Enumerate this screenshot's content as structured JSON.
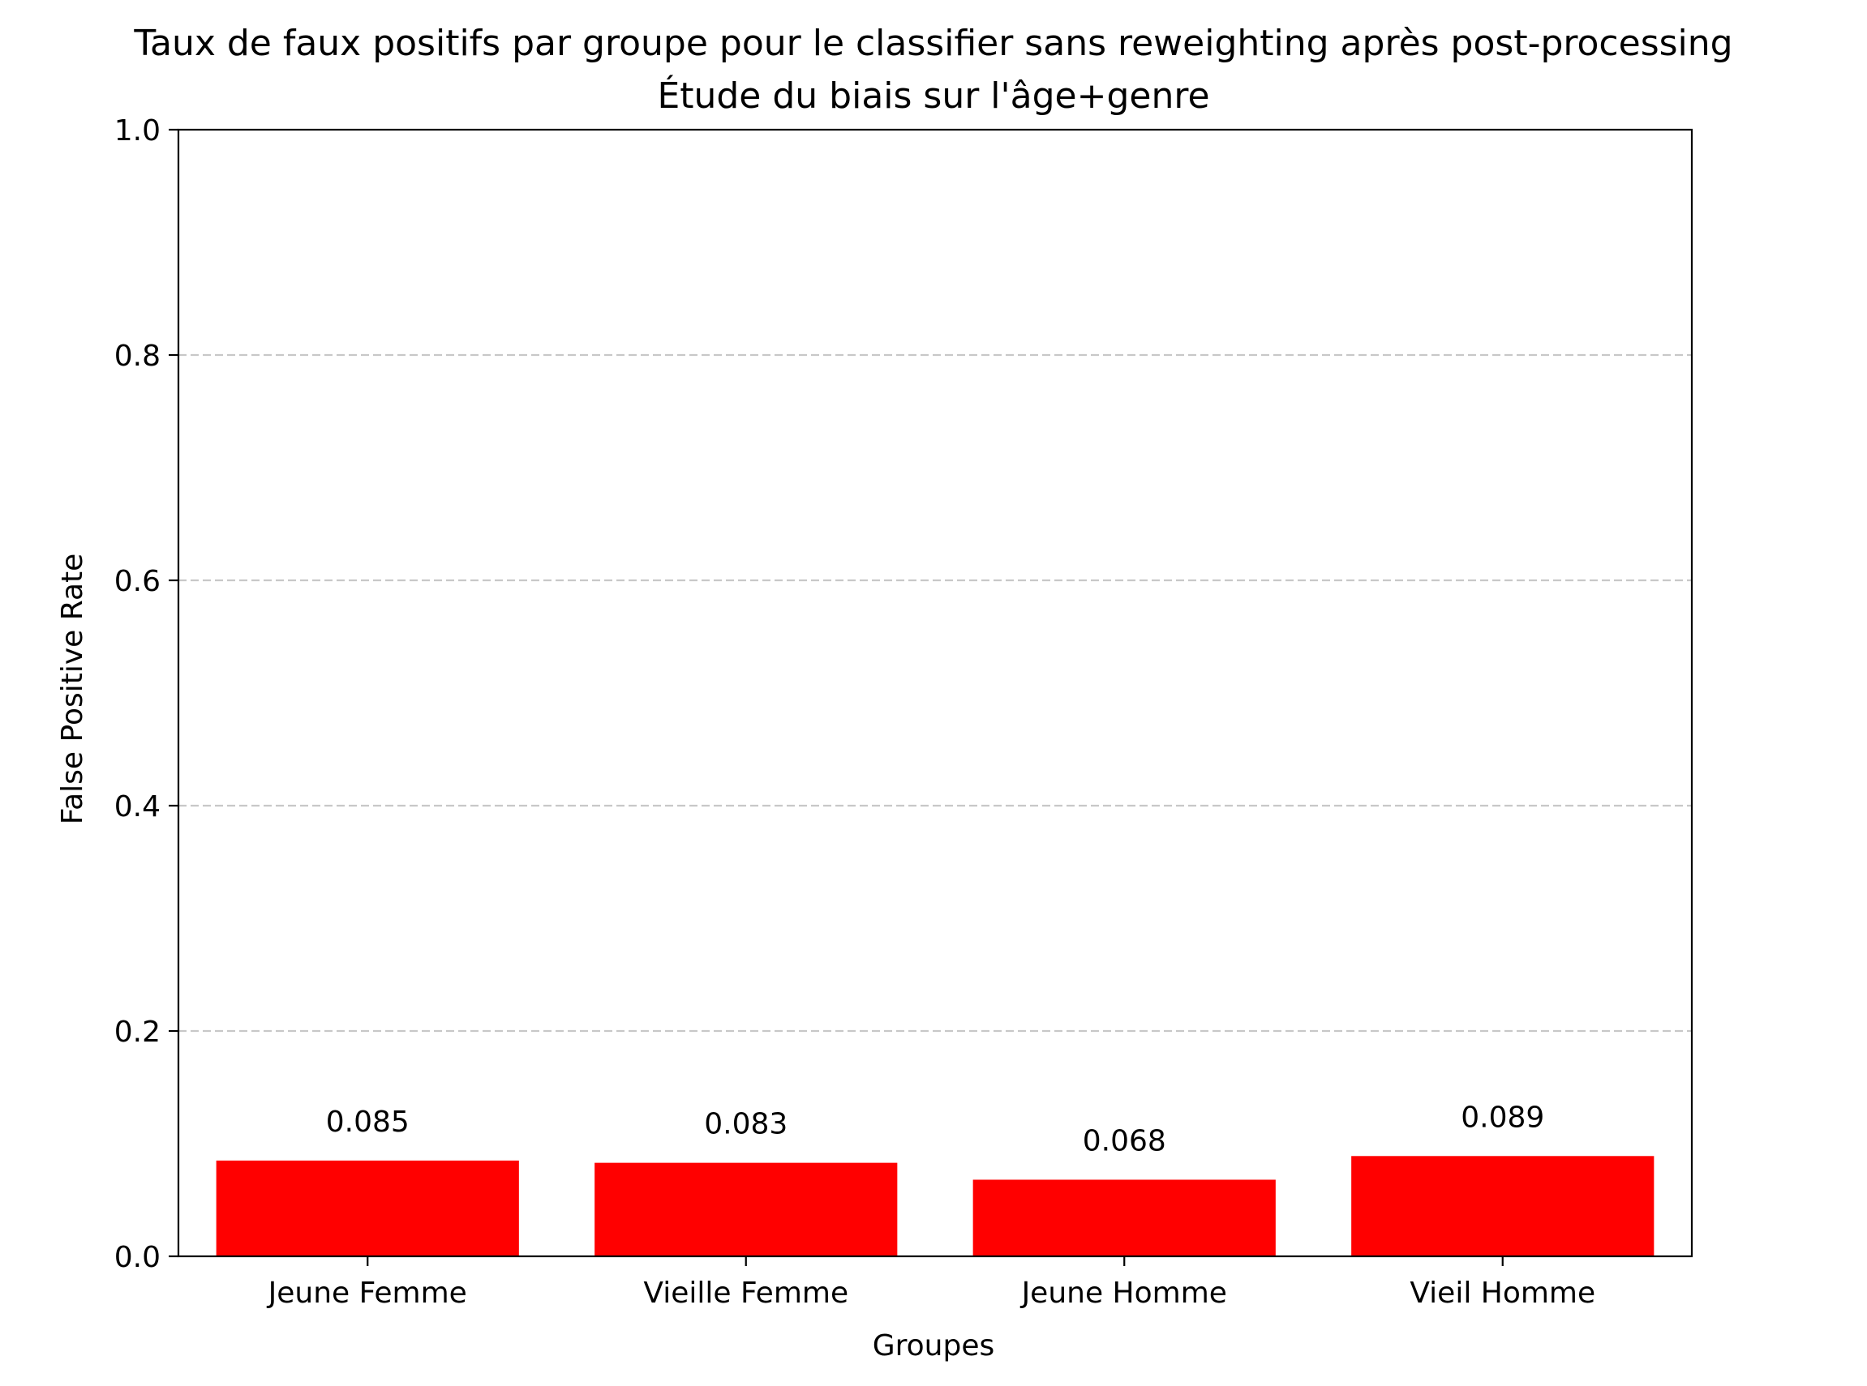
{
  "chart_data": {
    "type": "bar",
    "title": "Taux de faux positifs par groupe pour le classifier sans reweighting après post-processing",
    "subtitle": "Étude du biais sur l'âge+genre",
    "xlabel": "Groupes",
    "ylabel": "False Positive Rate",
    "categories": [
      "Jeune Femme",
      "Vieille Femme",
      "Jeune Homme",
      "Vieil Homme"
    ],
    "values": [
      0.085,
      0.083,
      0.068,
      0.089
    ],
    "data_labels": [
      "0.085",
      "0.083",
      "0.068",
      "0.089"
    ],
    "ylim": [
      0,
      1.0
    ],
    "yticks": [
      0.0,
      0.2,
      0.4,
      0.6,
      0.8,
      1.0
    ],
    "ytick_labels": [
      "0.0",
      "0.2",
      "0.4",
      "0.6",
      "0.8",
      "1.0"
    ],
    "grid": "y-axis dashed",
    "legend": "none",
    "colors": {
      "bar": "#ff0000",
      "grid": "#c8c8c8",
      "axis": "#000000"
    }
  }
}
